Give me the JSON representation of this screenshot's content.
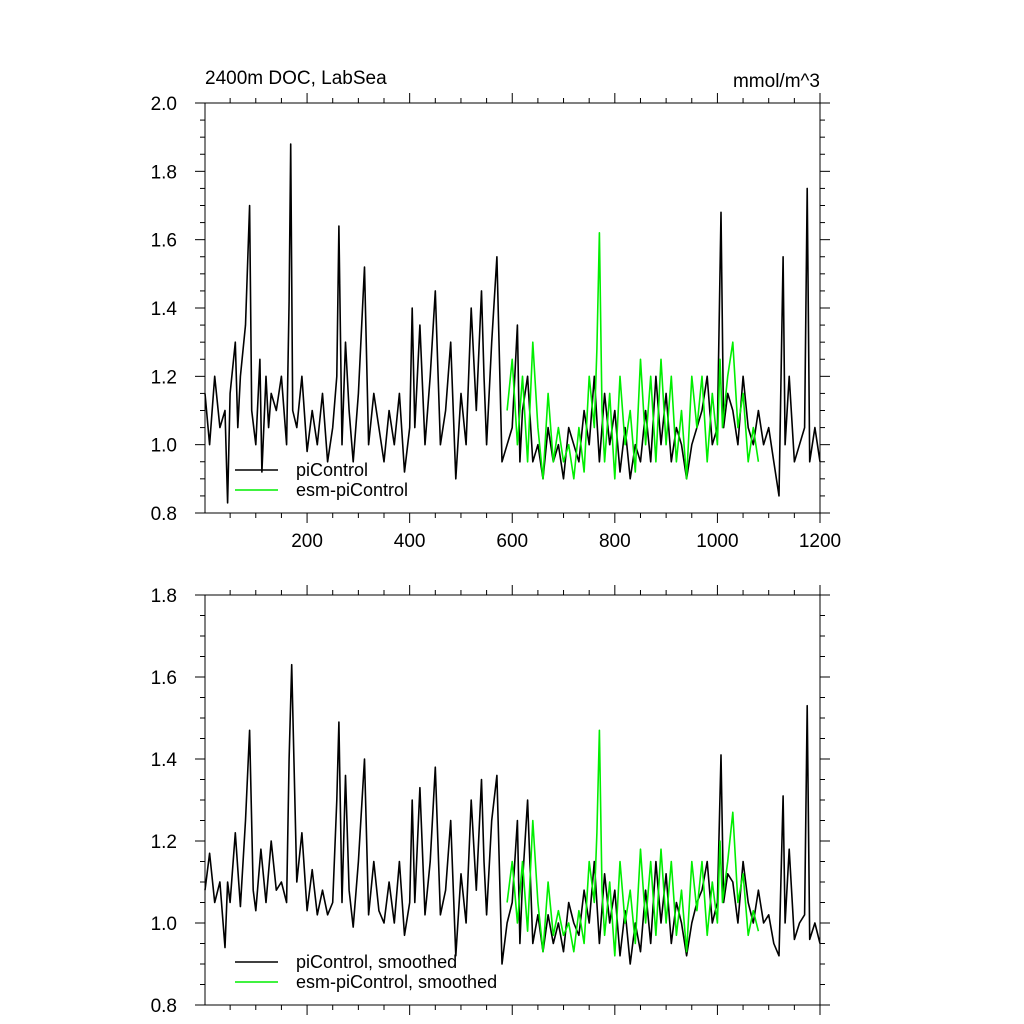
{
  "chart_data": [
    {
      "type": "line",
      "title_left": "2400m DOC, LabSea",
      "title_right": "mmol/m^3",
      "xlim": [
        1,
        1200
      ],
      "ylim": [
        0.8,
        2.0
      ],
      "xticks": [
        200,
        400,
        600,
        800,
        1000,
        1200
      ],
      "yticks": [
        0.8,
        1.0,
        1.2,
        1.4,
        1.6,
        1.8,
        2.0
      ],
      "ytick_labels": [
        "0.8",
        "1.0",
        "1.2",
        "1.4",
        "1.6",
        "1.8",
        "2.0"
      ],
      "grid": false,
      "legend_position": "bottom-left",
      "series": [
        {
          "name": "piControl",
          "color": "#000000",
          "x": [
            1,
            10,
            20,
            30,
            40,
            45,
            50,
            60,
            65,
            70,
            80,
            88,
            92,
            100,
            108,
            112,
            120,
            125,
            130,
            140,
            150,
            160,
            165,
            168,
            172,
            180,
            190,
            200,
            210,
            220,
            230,
            240,
            250,
            258,
            262,
            268,
            275,
            282,
            290,
            300,
            312,
            320,
            330,
            340,
            350,
            360,
            370,
            380,
            390,
            400,
            405,
            410,
            420,
            430,
            440,
            450,
            460,
            470,
            480,
            490,
            500,
            510,
            520,
            530,
            540,
            545,
            550,
            560,
            570,
            580,
            590,
            600,
            610,
            615,
            620,
            630,
            640,
            650,
            660,
            670,
            680,
            690,
            700,
            710,
            720,
            730,
            740,
            750,
            760,
            770,
            780,
            790,
            800,
            810,
            820,
            830,
            840,
            850,
            860,
            870,
            880,
            890,
            900,
            910,
            920,
            930,
            940,
            950,
            960,
            970,
            980,
            990,
            1000,
            1007,
            1012,
            1020,
            1030,
            1040,
            1050,
            1060,
            1070,
            1080,
            1090,
            1100,
            1110,
            1120,
            1128,
            1132,
            1140,
            1150,
            1160,
            1170,
            1175,
            1180,
            1190,
            1200
          ],
          "y": [
            1.15,
            1.0,
            1.2,
            1.05,
            1.1,
            0.83,
            1.15,
            1.3,
            1.05,
            1.2,
            1.35,
            1.7,
            1.1,
            1.0,
            1.25,
            0.92,
            1.2,
            1.05,
            1.15,
            1.1,
            1.2,
            1.0,
            1.42,
            1.88,
            1.1,
            1.05,
            1.2,
            0.98,
            1.1,
            1.0,
            1.15,
            0.95,
            1.05,
            1.2,
            1.64,
            1.0,
            1.3,
            1.1,
            0.95,
            1.15,
            1.52,
            1.0,
            1.15,
            1.05,
            0.95,
            1.1,
            1.0,
            1.15,
            0.92,
            1.05,
            1.4,
            1.05,
            1.35,
            1.0,
            1.2,
            1.45,
            1.0,
            1.1,
            1.3,
            0.9,
            1.15,
            1.0,
            1.4,
            1.1,
            1.45,
            1.2,
            1.0,
            1.3,
            1.55,
            0.95,
            1.0,
            1.05,
            1.35,
            0.95,
            1.1,
            1.2,
            0.95,
            1.0,
            0.9,
            1.05,
            0.95,
            1.0,
            0.9,
            1.05,
            1.0,
            0.95,
            1.1,
            1.0,
            1.2,
            0.95,
            1.15,
            1.0,
            1.1,
            0.92,
            1.05,
            0.9,
            1.0,
            0.95,
            1.1,
            0.95,
            1.2,
            1.0,
            1.15,
            0.95,
            1.05,
            1.0,
            0.9,
            1.0,
            1.05,
            1.1,
            1.2,
            1.0,
            1.05,
            1.68,
            1.05,
            1.15,
            1.1,
            1.0,
            1.2,
            1.05,
            1.0,
            1.1,
            1.0,
            1.05,
            0.95,
            0.85,
            1.55,
            1.0,
            1.2,
            0.95,
            1.0,
            1.05,
            1.75,
            0.95,
            1.05,
            0.95
          ]
        },
        {
          "name": "esm-piControl",
          "color": "#00ee00",
          "x": [
            590,
            600,
            610,
            620,
            630,
            640,
            650,
            660,
            670,
            680,
            690,
            700,
            710,
            720,
            730,
            740,
            750,
            760,
            765,
            770,
            775,
            780,
            790,
            800,
            810,
            820,
            830,
            840,
            850,
            860,
            870,
            880,
            890,
            900,
            910,
            920,
            930,
            940,
            950,
            960,
            970,
            980,
            990,
            1000,
            1005,
            1010,
            1020,
            1030,
            1040,
            1050,
            1060,
            1070,
            1080
          ],
          "y": [
            1.1,
            1.25,
            1.0,
            1.2,
            0.95,
            1.3,
            1.05,
            0.9,
            1.15,
            0.95,
            1.05,
            0.95,
            1.0,
            0.9,
            1.05,
            0.92,
            1.2,
            1.05,
            1.28,
            1.62,
            1.1,
            0.95,
            1.15,
            0.9,
            1.2,
            1.0,
            1.1,
            0.92,
            1.25,
            1.0,
            1.2,
            0.95,
            1.25,
            1.0,
            1.2,
            0.95,
            1.1,
            0.9,
            1.2,
            1.05,
            1.2,
            0.95,
            1.15,
            1.0,
            1.25,
            1.05,
            1.2,
            1.3,
            1.05,
            1.15,
            0.95,
            1.05,
            0.95
          ]
        }
      ]
    },
    {
      "type": "line",
      "xlim": [
        1,
        1200
      ],
      "ylim": [
        0.8,
        1.8
      ],
      "yticks": [
        0.8,
        1.0,
        1.2,
        1.4,
        1.6,
        1.8
      ],
      "ytick_labels": [
        "0.8",
        "1.0",
        "1.2",
        "1.4",
        "1.6",
        "1.8"
      ],
      "grid": false,
      "legend_position": "bottom-left",
      "series": [
        {
          "name": "piControl, smoothed",
          "color": "#000000",
          "x": [
            1,
            10,
            20,
            30,
            40,
            45,
            50,
            60,
            70,
            80,
            88,
            95,
            100,
            110,
            120,
            130,
            140,
            150,
            160,
            165,
            170,
            180,
            190,
            200,
            210,
            220,
            230,
            240,
            250,
            258,
            262,
            268,
            275,
            282,
            290,
            300,
            312,
            320,
            330,
            340,
            350,
            360,
            370,
            380,
            390,
            400,
            405,
            410,
            420,
            430,
            440,
            450,
            460,
            470,
            480,
            490,
            500,
            510,
            520,
            530,
            540,
            545,
            550,
            560,
            570,
            580,
            590,
            600,
            610,
            615,
            620,
            630,
            640,
            650,
            660,
            670,
            680,
            690,
            700,
            710,
            720,
            730,
            740,
            750,
            760,
            770,
            780,
            790,
            800,
            810,
            820,
            830,
            840,
            850,
            860,
            870,
            880,
            890,
            900,
            910,
            920,
            930,
            940,
            950,
            960,
            970,
            980,
            990,
            1000,
            1007,
            1012,
            1020,
            1030,
            1040,
            1050,
            1060,
            1070,
            1080,
            1090,
            1100,
            1110,
            1120,
            1128,
            1132,
            1140,
            1150,
            1160,
            1170,
            1175,
            1180,
            1190,
            1200
          ],
          "y": [
            1.08,
            1.17,
            1.05,
            1.1,
            0.94,
            1.1,
            1.05,
            1.22,
            1.04,
            1.25,
            1.47,
            1.08,
            1.03,
            1.18,
            1.05,
            1.2,
            1.08,
            1.1,
            1.05,
            1.4,
            1.63,
            1.1,
            1.22,
            1.03,
            1.13,
            1.02,
            1.08,
            1.02,
            1.05,
            1.3,
            1.49,
            1.05,
            1.36,
            1.08,
            0.99,
            1.15,
            1.4,
            1.02,
            1.15,
            1.03,
            1.0,
            1.1,
            1.0,
            1.15,
            0.97,
            1.05,
            1.3,
            1.05,
            1.33,
            1.02,
            1.15,
            1.38,
            1.02,
            1.08,
            1.25,
            0.92,
            1.12,
            1.0,
            1.3,
            1.08,
            1.35,
            1.15,
            1.02,
            1.25,
            1.36,
            0.9,
            1.0,
            1.05,
            1.25,
            0.95,
            1.1,
            1.3,
            0.95,
            1.02,
            0.93,
            1.02,
            0.95,
            1.0,
            0.93,
            1.05,
            1.0,
            0.97,
            1.08,
            1.0,
            1.15,
            0.95,
            1.12,
            1.0,
            1.08,
            0.92,
            1.03,
            0.9,
            1.0,
            0.93,
            1.08,
            0.95,
            1.15,
            1.0,
            1.12,
            0.95,
            1.05,
            1.0,
            0.92,
            1.0,
            1.05,
            1.08,
            1.15,
            1.0,
            1.05,
            1.41,
            1.05,
            1.12,
            1.1,
            1.0,
            1.15,
            1.05,
            1.0,
            1.08,
            1.0,
            1.02,
            0.95,
            0.92,
            1.31,
            1.0,
            1.18,
            0.96,
            1.0,
            1.02,
            1.53,
            0.96,
            1.0,
            0.95
          ]
        },
        {
          "name": "esm-piControl, smoothed",
          "color": "#00ee00",
          "x": [
            590,
            600,
            610,
            620,
            630,
            640,
            650,
            660,
            670,
            680,
            690,
            700,
            710,
            720,
            730,
            740,
            750,
            760,
            765,
            770,
            775,
            780,
            790,
            800,
            810,
            820,
            830,
            840,
            850,
            860,
            870,
            880,
            890,
            900,
            910,
            920,
            930,
            940,
            950,
            960,
            970,
            980,
            990,
            1000,
            1005,
            1010,
            1020,
            1030,
            1040,
            1050,
            1060,
            1070,
            1080
          ],
          "y": [
            1.05,
            1.15,
            1.0,
            1.15,
            0.98,
            1.25,
            1.05,
            0.93,
            1.1,
            0.97,
            1.03,
            0.97,
            1.0,
            0.93,
            1.03,
            0.95,
            1.15,
            1.05,
            1.22,
            1.47,
            1.08,
            0.97,
            1.1,
            0.92,
            1.15,
            1.0,
            1.08,
            0.95,
            1.18,
            1.0,
            1.15,
            0.97,
            1.18,
            1.0,
            1.15,
            0.97,
            1.08,
            0.93,
            1.15,
            1.03,
            1.15,
            0.97,
            1.1,
            1.0,
            1.2,
            1.05,
            1.15,
            1.27,
            1.05,
            1.12,
            0.97,
            1.03,
            0.98
          ]
        }
      ]
    }
  ]
}
